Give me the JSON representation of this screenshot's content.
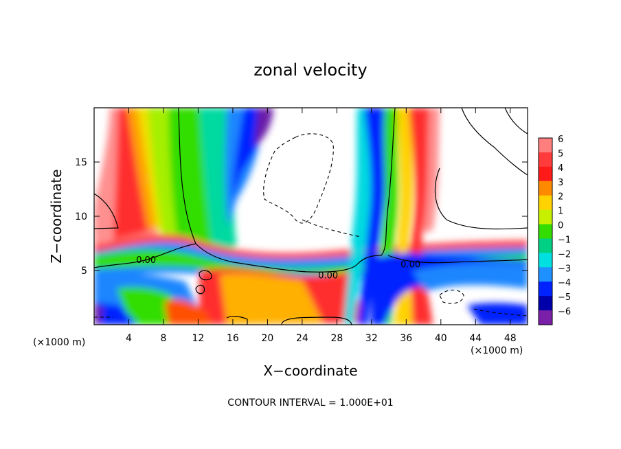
{
  "chart_data": {
    "type": "heatmap",
    "title": "zonal velocity",
    "xlabel": "X−coordinate",
    "ylabel": "Z−coordinate",
    "x_unit": "(×1000 m)",
    "y_unit": "(×1000 m)",
    "xlim": [
      0,
      50
    ],
    "ylim": [
      0,
      20
    ],
    "x_ticks": [
      4,
      8,
      12,
      16,
      20,
      24,
      28,
      32,
      36,
      40,
      44,
      48
    ],
    "y_ticks": [
      5,
      10,
      15
    ],
    "contour_labels": [
      {
        "text": "0.00",
        "x": 6,
        "z": 6
      },
      {
        "text": "0.00",
        "x": 27,
        "z": 4.6
      },
      {
        "text": "0.00",
        "x": 36.5,
        "z": 5.6
      }
    ],
    "colorbar": {
      "levels": [
        6,
        5,
        4,
        3,
        2,
        1,
        0,
        -1,
        -2,
        -3,
        -4,
        -5,
        -6
      ],
      "tick_labels": [
        "6",
        "5",
        "4",
        "3",
        "2",
        "1",
        "0",
        "−1",
        "−2",
        "−3",
        "−4",
        "−5",
        "−6"
      ],
      "colors": [
        "#ff7f7f",
        "#ff3b3b",
        "#ff1a1a",
        "#ff8a00",
        "#ffd200",
        "#c7f000",
        "#33dd00",
        "#00d084",
        "#00e0e0",
        "#1e90ff",
        "#0022ff",
        "#0000aa",
        "#7a1fa8"
      ]
    },
    "contour_interval_text": "CONTOUR INTERVAL = 1.000E+01"
  }
}
